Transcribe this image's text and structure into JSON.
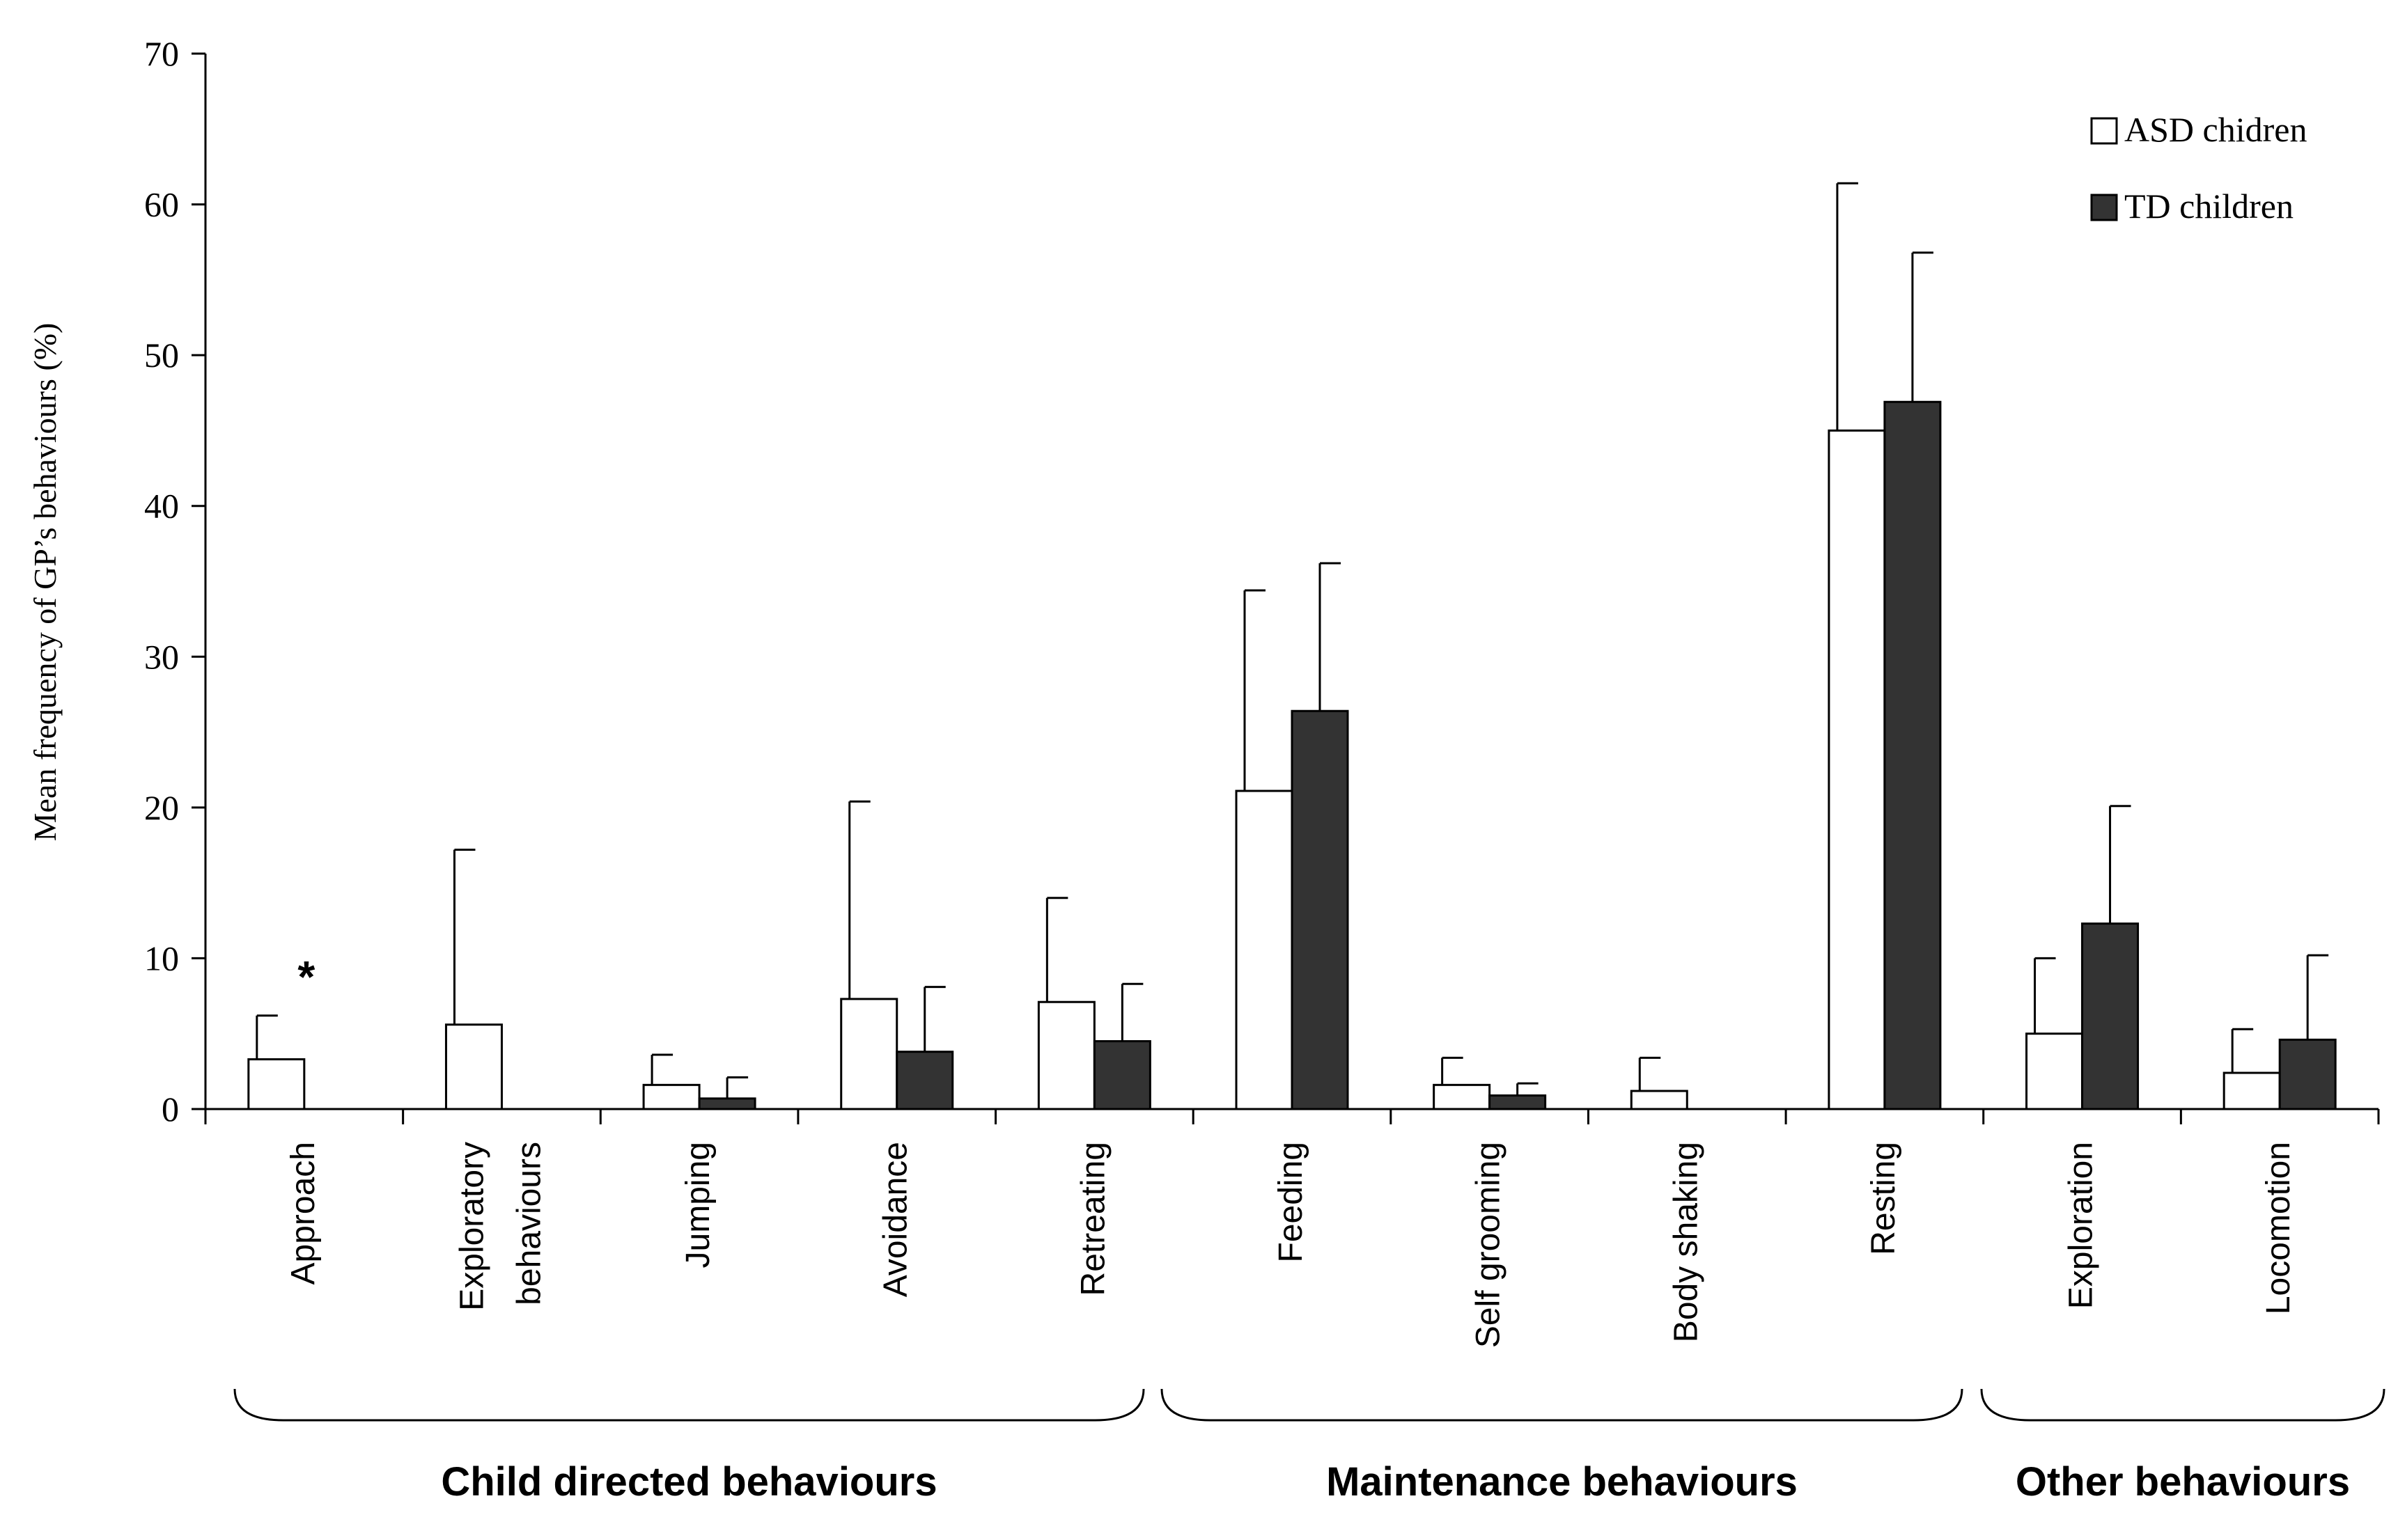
{
  "chart_data": {
    "type": "bar",
    "title": "",
    "ylabel": "Mean frequency of GP’s behaviours (%)",
    "xlabel": "",
    "ylim": [
      0,
      70
    ],
    "yticks": [
      0,
      10,
      20,
      30,
      40,
      50,
      60,
      70
    ],
    "grid": false,
    "legend_position": "top-right",
    "categories": [
      "Approach",
      "Exploratory behaviours",
      "Jumping",
      "Avoidance",
      "Retreating",
      "Feeding",
      "Self grooming",
      "Body shaking",
      "Resting",
      "Exploration",
      "Locomotion"
    ],
    "category_lines": [
      [
        "Approach"
      ],
      [
        "Exploratory",
        "behaviours"
      ],
      [
        "Jumping"
      ],
      [
        "Avoidance"
      ],
      [
        "Retreating"
      ],
      [
        "Feeding"
      ],
      [
        "Self grooming"
      ],
      [
        "Body shaking"
      ],
      [
        "Resting"
      ],
      [
        "Exploration"
      ],
      [
        "Locomotion"
      ]
    ],
    "series": [
      {
        "name": "ASD chidren",
        "color": "#ffffff",
        "values": [
          3.3,
          5.6,
          1.6,
          7.3,
          7.1,
          21.1,
          1.6,
          1.2,
          45.0,
          5.0,
          2.4
        ],
        "errors": [
          2.9,
          11.6,
          2.0,
          13.1,
          6.9,
          13.3,
          1.8,
          2.2,
          16.4,
          5.0,
          2.9
        ]
      },
      {
        "name": "TD children",
        "color": "#333333",
        "values": [
          0,
          0,
          0.7,
          3.8,
          4.5,
          26.4,
          0.9,
          0,
          46.9,
          12.3,
          4.6
        ],
        "errors": [
          0,
          0,
          1.4,
          4.3,
          3.8,
          9.8,
          0.8,
          0,
          9.9,
          7.8,
          5.6
        ]
      }
    ],
    "annotations": [
      {
        "text": "*",
        "category": "Approach"
      }
    ],
    "groups": [
      {
        "label": "Child directed behaviours",
        "categories": [
          "Approach",
          "Exploratory behaviours",
          "Jumping",
          "Avoidance",
          "Retreating"
        ]
      },
      {
        "label": "Maintenance behaviours",
        "categories": [
          "Feeding",
          "Self grooming",
          "Body shaking",
          "Resting"
        ]
      },
      {
        "label": "Other behaviours",
        "categories": [
          "Exploration",
          "Locomotion"
        ]
      }
    ]
  },
  "colors": {
    "axis": "#000000",
    "asd_fill": "#ffffff",
    "td_fill": "#333333",
    "bar_stroke": "#000000"
  }
}
